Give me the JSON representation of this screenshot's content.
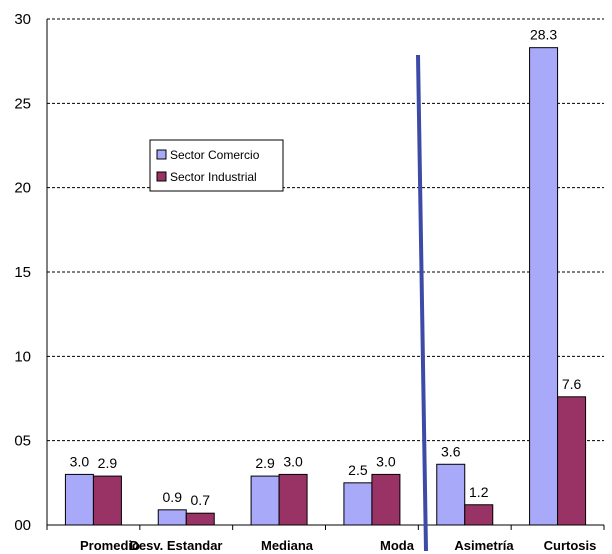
{
  "chart_data": {
    "type": "bar",
    "title": "",
    "xlabel": "",
    "ylabel": "",
    "categories": [
      "Promedio",
      "Desv. Estandar",
      "Mediana",
      "Moda",
      "Asimetría",
      "Curtosis"
    ],
    "series": [
      {
        "name": "Sector Comercio",
        "color": "#a9a9f9",
        "values": [
          3.0,
          0.9,
          2.9,
          2.5,
          3.6,
          28.3
        ],
        "labels": [
          "3.0",
          "0.9",
          "2.9",
          "2.5",
          "3.6",
          "28.3"
        ]
      },
      {
        "name": "Sector Industrial",
        "color": "#993366",
        "values": [
          2.9,
          0.7,
          3.0,
          3.0,
          1.2,
          7.6
        ],
        "labels": [
          "2.9",
          "0.7",
          "3.0",
          "3.0",
          "1.2",
          "7.6"
        ]
      }
    ],
    "ylim": [
      0,
      30
    ],
    "y_ticks": [
      0,
      5,
      10,
      15,
      20,
      25,
      30
    ],
    "y_tick_labels": [
      "00",
      "05",
      "10",
      "15",
      "20",
      "25",
      "30"
    ],
    "grid": "horizontal dashed",
    "legend": "upper-left inside plot",
    "separator_line_color": "#3d4aa6"
  }
}
